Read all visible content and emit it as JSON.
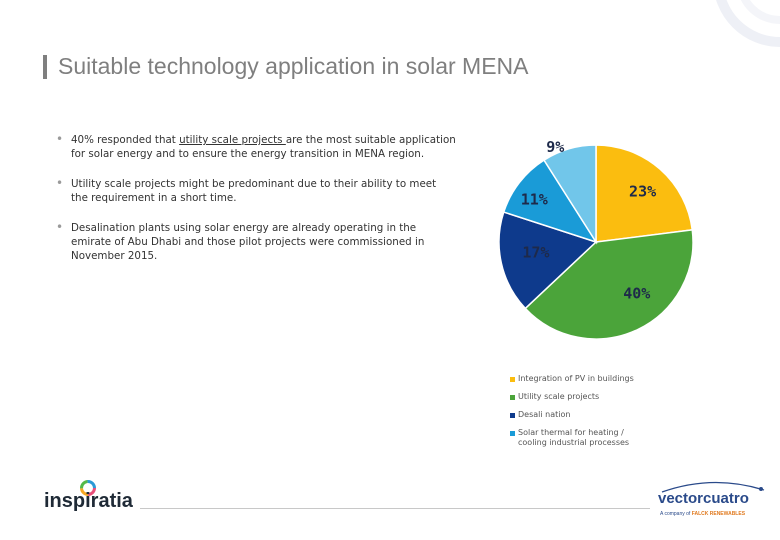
{
  "title": "Suitable technology application in solar MENA",
  "bullets": [
    {
      "pre": "40% responded that ",
      "underlined": "utility scale projects ",
      "post": "are the most suitable application for solar energy and to ensure the energy transition in MENA region."
    },
    {
      "text": "Utility scale projects might be predominant due to their ability to meet the requirement in a short time."
    },
    {
      "text": "Desalination plants using solar energy are already operating in the emirate of Abu Dhabi and those pilot projects were commissioned in November 2015."
    }
  ],
  "chart_data": {
    "type": "pie",
    "slices": [
      {
        "label": "Integration of PV in buildings",
        "value": 23,
        "display": "23%",
        "color": "#fbbd0f"
      },
      {
        "label": "Utility scale projects",
        "value": 40,
        "display": "40%",
        "color": "#4ba43a"
      },
      {
        "label": "Desalination",
        "value": 17,
        "display": "17%",
        "color": "#0e3a8c"
      },
      {
        "label": "Solar thermal for heating / cooling industrial processes",
        "value": 11,
        "display": "11%",
        "color": "#1a9bd7"
      },
      {
        "label": "",
        "value": 9,
        "display": "9%",
        "color": "#71c6ea"
      }
    ],
    "legend_position": "bottom"
  },
  "legend": {
    "items": [
      {
        "line1": "Integration of PV in buildings",
        "line2": ""
      },
      {
        "line1": "Utility scale projects",
        "line2": ""
      },
      {
        "line1": "Desali nation",
        "line2": ""
      },
      {
        "line1": "Solar thermal for heating /",
        "line2": "cooling industrial processes"
      }
    ]
  },
  "footer": {
    "left_logo_text": "inspiratia",
    "right_logo_text": "vectorcuatro",
    "right_logo_sub_pre": "A company of ",
    "right_logo_sub_brand": "FALCK RENEWABLES"
  }
}
